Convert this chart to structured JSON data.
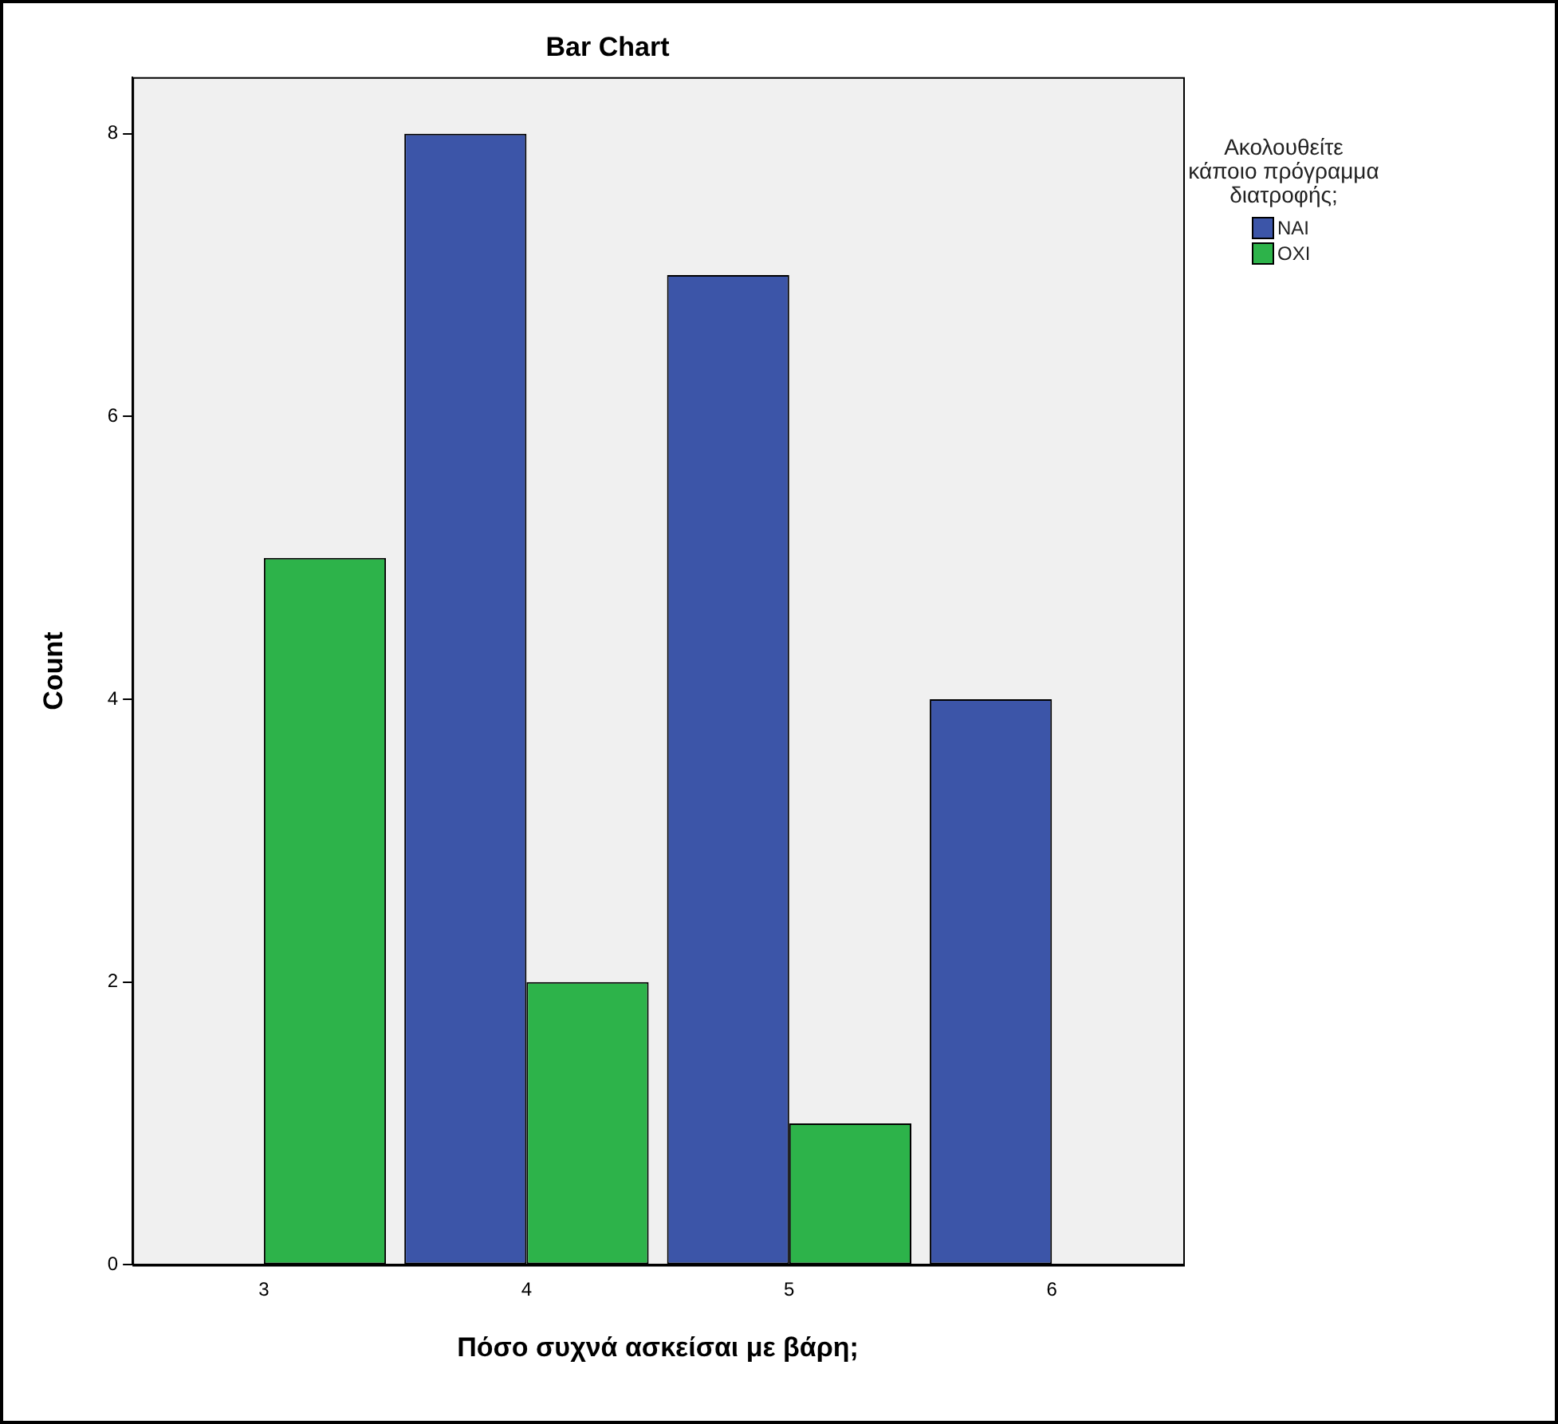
{
  "chart_data": {
    "type": "bar",
    "title": "Bar Chart",
    "xlabel": "Πόσο συχνά ασκείσαι με βάρη;",
    "ylabel": "Count",
    "legend_title": "Ακολουθείτε κάποιο πρόγραμμα διατροφής;",
    "categories": [
      "3",
      "4",
      "5",
      "6"
    ],
    "series": [
      {
        "name": "NAI",
        "color": "#3c55a8",
        "values": [
          0,
          8,
          7,
          4
        ]
      },
      {
        "name": "OXI",
        "color": "#2db34a",
        "values": [
          5,
          2,
          1,
          0
        ]
      }
    ],
    "ylim": [
      0,
      8.4
    ],
    "yticks": [
      0,
      2,
      4,
      6,
      8
    ],
    "grid": false,
    "legend": "right"
  }
}
